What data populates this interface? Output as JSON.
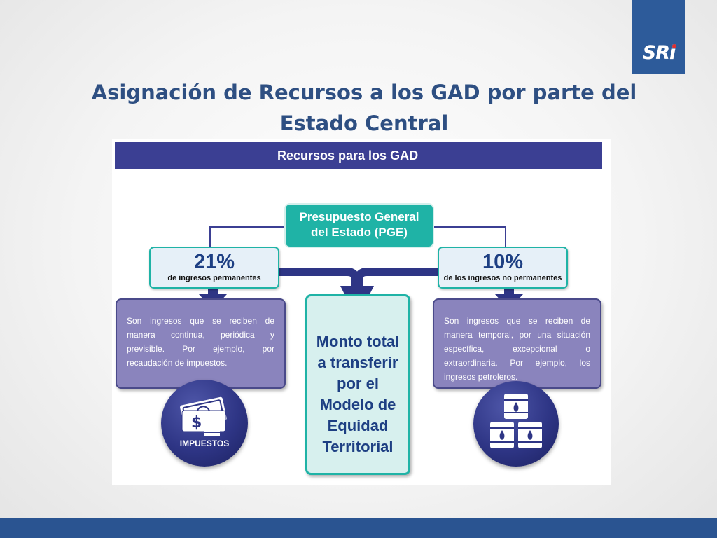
{
  "slide": {
    "title_line1": "Asignación de Recursos a los GAD por parte del",
    "title_line2": "Estado Central",
    "logo_text": "SRi"
  },
  "diagram": {
    "header": "Recursos para los GAD",
    "root": {
      "line1": "Presupuesto General",
      "line2": "del Estado (PGE)"
    },
    "left_branch": {
      "percent": "21%",
      "percent_label": "de ingresos permanentes",
      "description": "Son ingresos que se reciben de manera continua, periódica y previsible. Por ejemplo, por recaudación de impuestos.",
      "icon_label": "IMPUESTOS"
    },
    "right_branch": {
      "percent": "10%",
      "percent_label": "de los ingresos no permanentes",
      "description": "Son ingresos que se reciben de manera temporal, por una situación específica, excepcional o extraordinaria. Por ejemplo, los ingresos petroleros."
    },
    "center": {
      "line1": "Monto total",
      "line2": "a transferir",
      "line3": "por el",
      "line4": "Modelo de",
      "line5": "Equidad",
      "line6": "Territorial"
    }
  },
  "colors": {
    "title": "#2e4f82",
    "header_bar": "#3b3f93",
    "teal": "#1fb3a6",
    "navy": "#1d3f83",
    "purple_box": "#8a84bd",
    "bottom_bar": "#2a5491"
  },
  "icons": {
    "left_circle": "money-stack-icon",
    "right_circle": "oil-barrels-icon"
  }
}
